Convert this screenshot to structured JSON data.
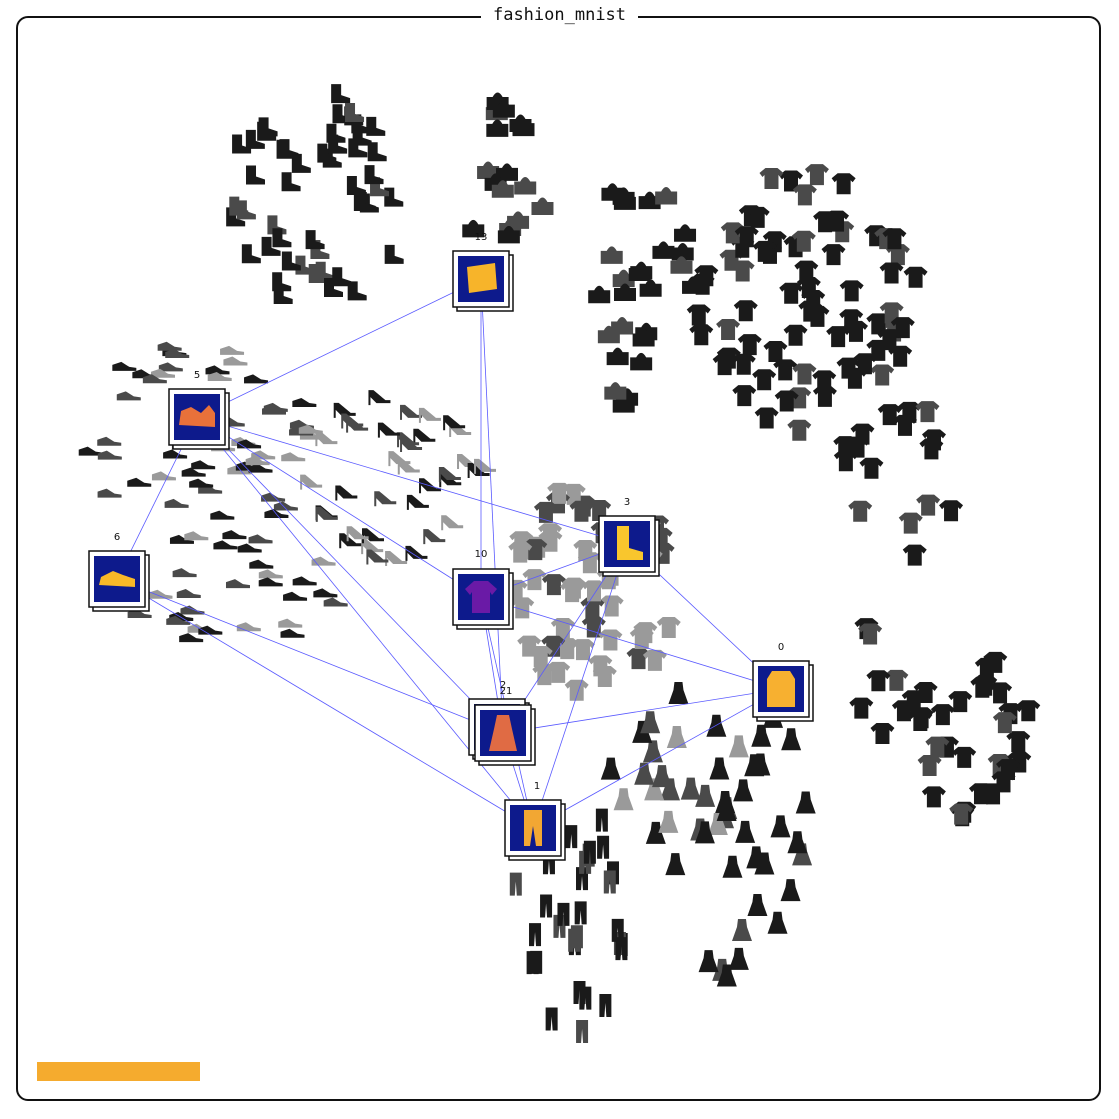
{
  "title": "fashion_mnist",
  "colors": {
    "edge": "#5a5aff",
    "node_bg": "#0d1a8c",
    "item_dark": "#1a1a1a",
    "item_mid": "#4a4a4a",
    "item_light": "#9a9a9a",
    "progress": "#f5ab2e"
  },
  "progress": {
    "fraction": 1.0
  },
  "nodes": [
    {
      "id": "13",
      "label": "13",
      "icon": "bag-icon",
      "color": "#f7b42a"
    },
    {
      "id": "5",
      "label": "5",
      "icon": "sandal-icon",
      "color": "#e8713a"
    },
    {
      "id": "6",
      "label": "6",
      "icon": "sneaker-icon",
      "color": "#f9b928"
    },
    {
      "id": "3",
      "label": "3",
      "icon": "ankle-boot-icon",
      "color": "#f9c62d"
    },
    {
      "id": "10",
      "label": "10",
      "icon": "tshirt-icon",
      "color": "#6a1aa6"
    },
    {
      "id": "0",
      "label": "0",
      "icon": "coat-icon",
      "color": "#f7b030"
    },
    {
      "id": "21",
      "label": "21",
      "icon": "dress-icon",
      "color": "#e06b44"
    },
    {
      "id": "2",
      "label": "2",
      "icon": "dress-icon",
      "color": "#d96245"
    },
    {
      "id": "1",
      "label": "1",
      "icon": "trouser-icon",
      "color": "#f2a733"
    }
  ],
  "edges": [
    [
      "5",
      "13"
    ],
    [
      "5",
      "6"
    ],
    [
      "5",
      "3"
    ],
    [
      "5",
      "10"
    ],
    [
      "5",
      "21"
    ],
    [
      "5",
      "1"
    ],
    [
      "13",
      "10"
    ],
    [
      "13",
      "21"
    ],
    [
      "6",
      "21"
    ],
    [
      "6",
      "1"
    ],
    [
      "3",
      "10"
    ],
    [
      "3",
      "21"
    ],
    [
      "3",
      "1"
    ],
    [
      "3",
      "0"
    ],
    [
      "10",
      "0"
    ],
    [
      "10",
      "21"
    ],
    [
      "10",
      "1"
    ],
    [
      "0",
      "21"
    ],
    [
      "0",
      "1"
    ],
    [
      "21",
      "1"
    ]
  ]
}
